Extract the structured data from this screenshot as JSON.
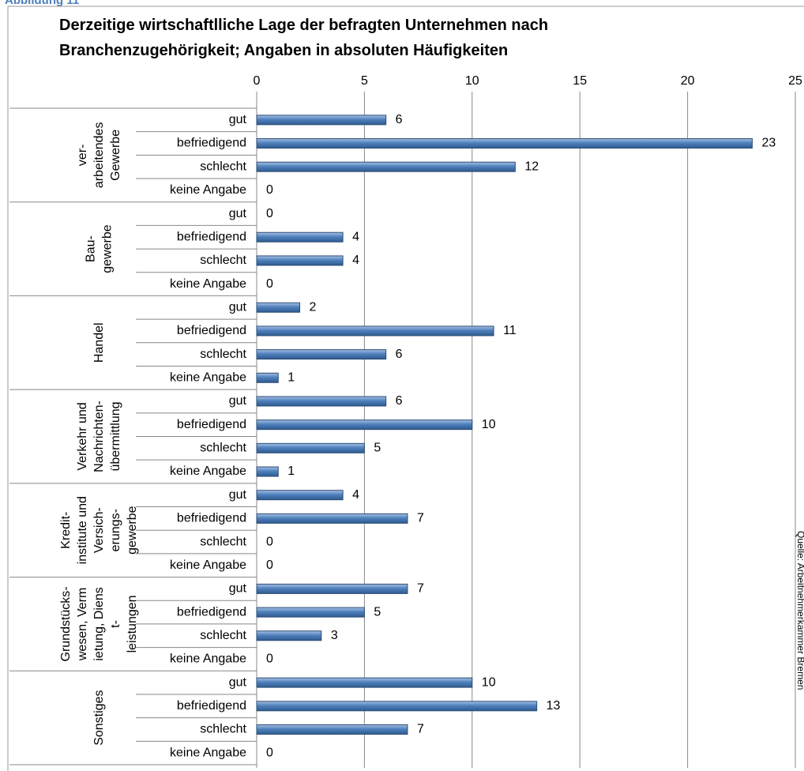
{
  "figure_label": "Abbildung 11",
  "source": "Quelle: Arbeitnehmerkammer Bremen",
  "chart_data": {
    "type": "bar",
    "title": "Derzeitige wirtschaftlliche Lage der befragten Unternehmen nach Branchenzugehörigkeit; Angaben in absoluten Häufigkeiten",
    "categories": [
      "gut",
      "befriedigend",
      "schlecht",
      "keine Angabe"
    ],
    "groups": [
      {
        "name": [
          "ver-",
          "arbeitendes",
          "Gewerbe"
        ],
        "values": [
          6,
          23,
          12,
          0
        ]
      },
      {
        "name": [
          "Bau-",
          "gewerbe"
        ],
        "values": [
          0,
          4,
          4,
          0
        ]
      },
      {
        "name": [
          "Handel"
        ],
        "values": [
          2,
          11,
          6,
          1
        ]
      },
      {
        "name": [
          "Verkehr und",
          "Nachrichten-",
          "übermittlung"
        ],
        "values": [
          6,
          10,
          5,
          1
        ]
      },
      {
        "name": [
          "Kredit-",
          "institute und",
          "Versich-",
          "erungs-",
          "gewerbe"
        ],
        "values": [
          4,
          7,
          0,
          0
        ]
      },
      {
        "name": [
          "Grundstücks-",
          "wesen, Verm",
          "ietung, Diens",
          "t-",
          "leistungen"
        ],
        "values": [
          7,
          5,
          3,
          0
        ]
      },
      {
        "name": [
          "Sonstiges"
        ],
        "values": [
          10,
          13,
          7,
          0
        ]
      }
    ],
    "color": "#4f81bd",
    "xlim": [
      0,
      25
    ],
    "xticks": [
      0,
      5,
      10,
      15,
      20,
      25
    ],
    "grid": true
  }
}
